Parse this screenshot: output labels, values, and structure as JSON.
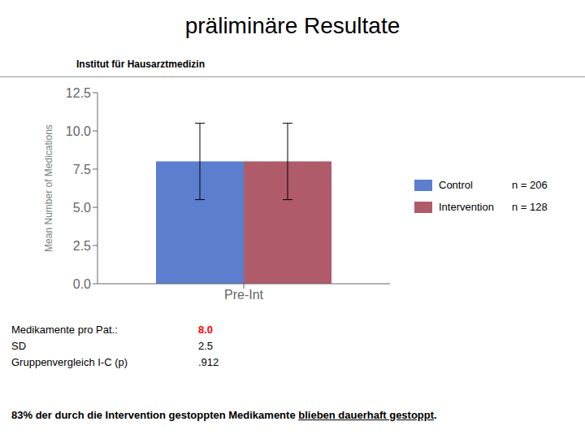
{
  "chart_data": {
    "type": "bar",
    "title": "präliminäre Resultate",
    "subtitle": "Institut für Hausarztmedizin",
    "categories": [
      "Pre-Int"
    ],
    "series": [
      {
        "name": "Control",
        "n_label": "n = 206",
        "color": "#5b7fce",
        "values": [
          8.0
        ],
        "error": [
          2.5
        ]
      },
      {
        "name": "Intervention",
        "n_label": "n = 128",
        "color": "#b05b6a",
        "values": [
          8.0
        ],
        "error": [
          2.5
        ]
      }
    ],
    "ylabel": "Mean Number of Medications",
    "ylim": [
      0,
      12.5
    ],
    "yticks": [
      {
        "value": 0.0,
        "label": "0.0"
      },
      2.5,
      {
        "value": 5.0,
        "label": "5.0"
      },
      7.5,
      {
        "value": 10.0,
        "label": "10.0"
      },
      12.5
    ],
    "grid": false,
    "annotations": [
      [
        {
          "text": "Medikamente pro Pat.:"
        },
        {
          "text": "8.0",
          "color": "red"
        }
      ],
      [
        {
          "text": "SD"
        },
        {
          "text": "2.5"
        }
      ],
      [
        {
          "text": "Gruppenvergleich I-C (p)"
        },
        {
          "text": ".912"
        }
      ],
      [
        {
          "text": "83% der durch die Intervention gestoppten Medikamente "
        },
        {
          "text": "blieben dauerhaft gestoppt"
        },
        {
          "text": "."
        }
      ]
    ]
  }
}
